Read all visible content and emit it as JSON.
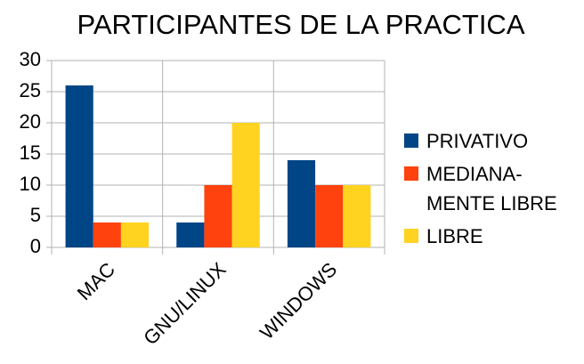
{
  "chart_data": {
    "type": "bar",
    "title": "PARTICIPANTES DE LA PRACTICA",
    "categories": [
      "MAC",
      "GNU/LINUX",
      "WINDOWS"
    ],
    "series": [
      {
        "name": "PRIVATIVO",
        "color": "#004586",
        "values": [
          26,
          4,
          14
        ]
      },
      {
        "name": "MEDIANA-MENTE LIBRE",
        "color": "#ff420e",
        "values": [
          4,
          10,
          10
        ]
      },
      {
        "name": "LIBRE",
        "color": "#ffd320",
        "values": [
          4,
          20,
          10
        ]
      }
    ],
    "ylim": [
      0,
      30
    ],
    "yticks": [
      0,
      5,
      10,
      15,
      20,
      25,
      30
    ],
    "grid": true,
    "legend": "right"
  }
}
